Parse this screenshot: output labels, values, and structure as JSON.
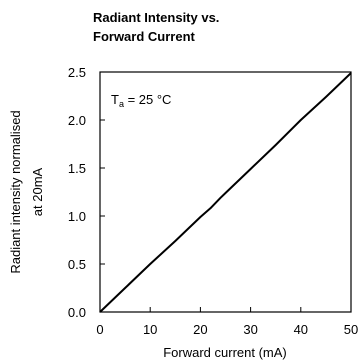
{
  "chart_data": {
    "type": "line",
    "title_lines": [
      "Radiant Intensity vs.",
      "Forward Current"
    ],
    "xlabel": "Forward current (mA)",
    "ylabel_lines": [
      "Radiant intensity normalised",
      "at 20mA"
    ],
    "annotation": {
      "prefix": "T",
      "subscript": "a",
      "suffix": " = 25 °C"
    },
    "xlim": [
      0,
      50
    ],
    "ylim": [
      0,
      2.5
    ],
    "x_ticks": [
      "0",
      "10",
      "20",
      "30",
      "40",
      "50"
    ],
    "y_ticks": [
      "0.0",
      "0.5",
      "1.0",
      "1.5",
      "2.0",
      "2.5"
    ],
    "grid": false,
    "series": [
      {
        "x": [
          0,
          5,
          10,
          15,
          20,
          22,
          24,
          25,
          30,
          35,
          40,
          45,
          50
        ],
        "y": [
          0,
          0.25,
          0.5,
          0.74,
          0.99,
          1.08,
          1.19,
          1.24,
          1.49,
          1.74,
          2.0,
          2.24,
          2.49
        ],
        "color": "#000000"
      }
    ]
  }
}
